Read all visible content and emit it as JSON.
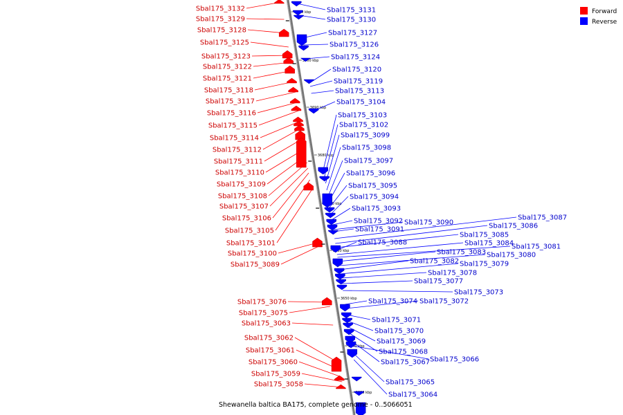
{
  "legend": {
    "forward": {
      "label": "Forward",
      "color": "#ff0000"
    },
    "reverse": {
      "label": "Reverse",
      "color": "#0000ff"
    }
  },
  "caption": "Shewanella baltica BA175, complete genome - 0..5066051",
  "ticks": [
    "3710 kbp",
    "3700 kbp",
    "3690 kbp",
    "3680 kbp",
    "3670 kbp",
    "3660 kbp",
    "3650 kbp",
    "3640 kbp",
    "3630 kbp"
  ],
  "forward_genes": [
    "Sbal175_3132",
    "Sbal175_3129",
    "Sbal175_3128",
    "Sbal175_3125",
    "Sbal175_3123",
    "Sbal175_3122",
    "Sbal175_3121",
    "Sbal175_3118",
    "Sbal175_3117",
    "Sbal175_3116",
    "Sbal175_3115",
    "Sbal175_3114",
    "Sbal175_3112",
    "Sbal175_3111",
    "Sbal175_3110",
    "Sbal175_3109",
    "Sbal175_3108",
    "Sbal175_3107",
    "Sbal175_3106",
    "Sbal175_3105",
    "Sbal175_3101",
    "Sbal175_3100",
    "Sbal175_3089",
    "Sbal175_3076",
    "Sbal175_3075",
    "Sbal175_3063",
    "Sbal175_3062",
    "Sbal175_3061",
    "Sbal175_3060",
    "Sbal175_3059",
    "Sbal175_3058"
  ],
  "reverse_genes": [
    "Sbal175_3131",
    "Sbal175_3130",
    "Sbal175_3127",
    "Sbal175_3126",
    "Sbal175_3124",
    "Sbal175_3120",
    "Sbal175_3119",
    "Sbal175_3113",
    "Sbal175_3104",
    "Sbal175_3103",
    "Sbal175_3102",
    "Sbal175_3099",
    "Sbal175_3098",
    "Sbal175_3097",
    "Sbal175_3096",
    "Sbal175_3095",
    "Sbal175_3094",
    "Sbal175_3093",
    "Sbal175_3092",
    "Sbal175_3090",
    "Sbal175_3091",
    "Sbal175_3087",
    "Sbal175_3086",
    "Sbal175_3085",
    "Sbal175_3088",
    "Sbal175_3084",
    "Sbal175_3081",
    "Sbal175_3083",
    "Sbal175_3080",
    "Sbal175_3082",
    "Sbal175_3079",
    "Sbal175_3078",
    "Sbal175_3077",
    "Sbal175_3073",
    "Sbal175_3074",
    "Sbal175_3072",
    "Sbal175_3071",
    "Sbal175_3070",
    "Sbal175_3069",
    "Sbal175_3068",
    "Sbal175_3067",
    "Sbal175_3066",
    "Sbal175_3065",
    "Sbal175_3064"
  ]
}
